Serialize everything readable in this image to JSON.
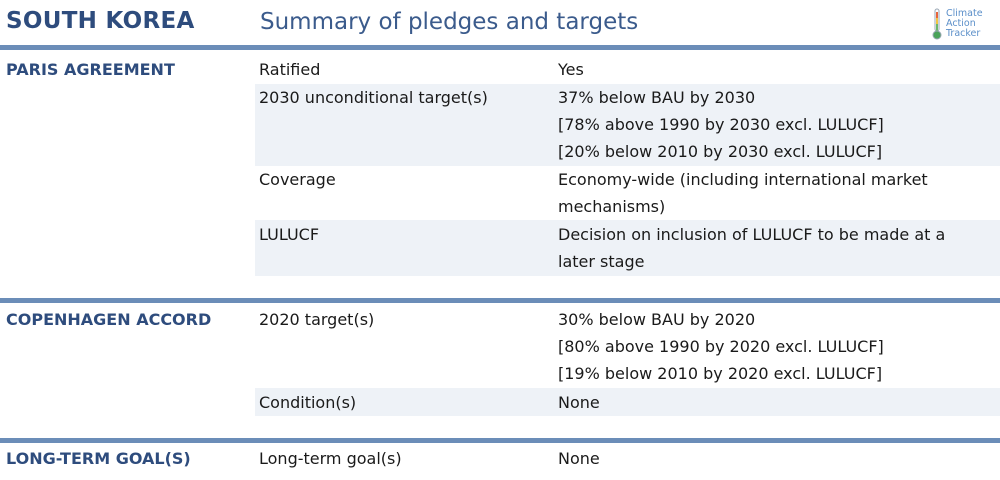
{
  "header": {
    "country": "SOUTH KOREA",
    "subtitle": "Summary of pledges and targets",
    "logo_lines": [
      "Climate",
      "Action",
      "Tracker"
    ]
  },
  "colors": {
    "brand": "#2e4c7d",
    "bar": "#6b8db8",
    "band": "#eef2f7",
    "logo": "#5b8fc9"
  },
  "sections": [
    {
      "title": "PARIS AGREEMENT",
      "rows": [
        {
          "label": "Ratified",
          "lines": [
            "Yes"
          ]
        },
        {
          "label": "2030 unconditional target(s)",
          "lines": [
            "37% below BAU by 2030",
            "[78% above 1990 by 2030 excl. LULUCF]",
            "[20% below 2010 by 2030 excl. LULUCF]"
          ]
        },
        {
          "label": "Coverage",
          "lines": [
            "Economy-wide (including international market",
            "mechanisms)"
          ]
        },
        {
          "label": "LULUCF",
          "lines": [
            "Decision on inclusion of LULUCF to be made at a",
            "later stage"
          ]
        }
      ]
    },
    {
      "title": "COPENHAGEN ACCORD",
      "rows": [
        {
          "label": "2020 target(s)",
          "lines": [
            "30% below BAU by 2020",
            "[80% above 1990 by 2020 excl. LULUCF]",
            "[19% below 2010 by 2020 excl. LULUCF]"
          ]
        },
        {
          "label": "Condition(s)",
          "lines": [
            "None"
          ]
        }
      ]
    },
    {
      "title": "LONG-TERM GOAL(S)",
      "rows": [
        {
          "label": "Long-term goal(s)",
          "lines": [
            "None"
          ]
        }
      ]
    }
  ]
}
